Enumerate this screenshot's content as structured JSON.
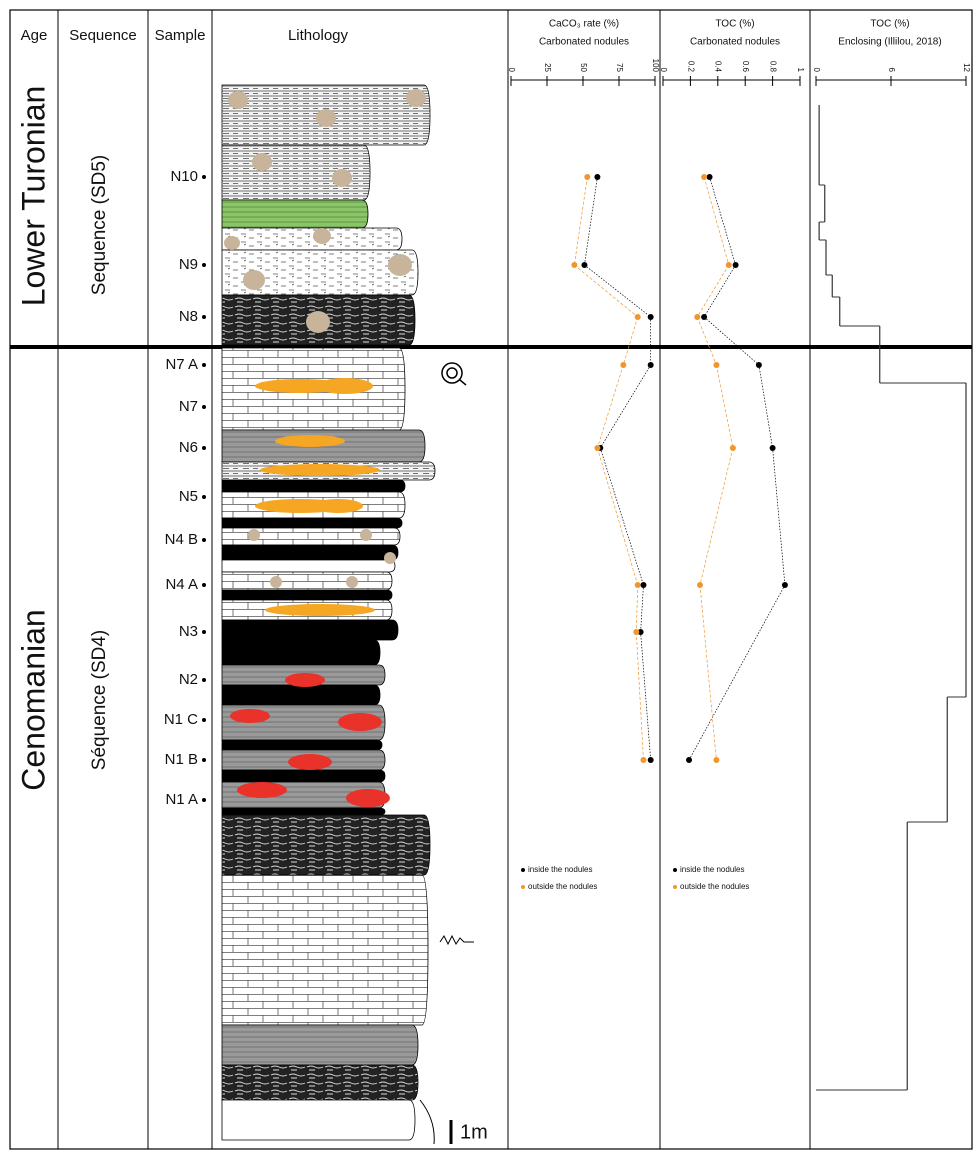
{
  "header": {
    "age": "Age",
    "sequence": "Sequence",
    "sample": "Sample",
    "lithology": "Lithology"
  },
  "ages": [
    "Lower Turonian",
    "Cenomanian"
  ],
  "sequences": [
    "Sequence (SD5)",
    "Séquence (SD4)"
  ],
  "samples": [
    "N10",
    "N9",
    "N8",
    "N7 A",
    "N7",
    "N6",
    "N5",
    "N4 B",
    "N4 A",
    "N3",
    "N2",
    "N1 C",
    "N1 B",
    "N1 A"
  ],
  "scale_bar": "1m",
  "chart_data": [
    {
      "type": "line",
      "title": "CaCO₃ rate (%)",
      "subtitle": "Carbonated nodules",
      "series": [
        {
          "name": "inside the nodules",
          "color": "#000000",
          "values": [
            60,
            51,
            97,
            97,
            null,
            62,
            null,
            null,
            92,
            90,
            null,
            null,
            97,
            null
          ]
        },
        {
          "name": "outside the nodules",
          "color": "#f0962d",
          "values": [
            53,
            44,
            88,
            78,
            null,
            60,
            null,
            null,
            88,
            87,
            null,
            null,
            92,
            null
          ]
        }
      ],
      "xlim": [
        0,
        100
      ],
      "xticks": [
        0,
        25,
        50,
        75,
        100
      ]
    },
    {
      "type": "line",
      "title": "TOC (%)",
      "subtitle": "Carbonated nodules",
      "series": [
        {
          "name": "inside the nodules",
          "color": "#000000",
          "values": [
            0.34,
            0.53,
            0.3,
            0.7,
            null,
            0.8,
            null,
            null,
            0.89,
            null,
            null,
            null,
            0.19,
            null
          ]
        },
        {
          "name": "outside the nodules",
          "color": "#f0962d",
          "values": [
            0.3,
            0.48,
            0.25,
            0.39,
            null,
            0.51,
            null,
            null,
            0.27,
            null,
            null,
            null,
            0.39,
            null
          ]
        }
      ],
      "xlim": [
        0,
        1
      ],
      "xticks": [
        0,
        0.2,
        0.4,
        0.6,
        0.8,
        1
      ]
    },
    {
      "type": "step",
      "title": "TOC (%)",
      "subtitle": "Enclosing (Illilou, 2018)",
      "values": [
        0.25,
        0.7,
        0.25,
        0.8,
        1.3,
        1.9,
        5.1,
        12,
        10.5,
        7.3
      ],
      "color": "#333333",
      "xlim": [
        0,
        12
      ],
      "xticks": [
        0,
        6,
        12
      ]
    }
  ]
}
